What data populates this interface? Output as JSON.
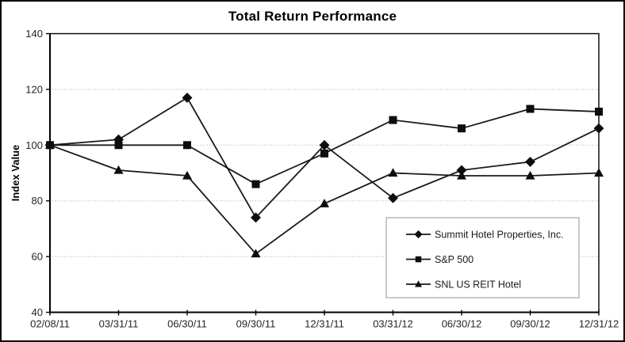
{
  "chart_data": {
    "type": "line",
    "title": "Total Return Performance",
    "xlabel": "",
    "ylabel": "Index Value",
    "ylim": [
      40,
      140
    ],
    "yticks": [
      40,
      60,
      80,
      100,
      120,
      140
    ],
    "grid_yticks": [
      60,
      80,
      100,
      120
    ],
    "grid": true,
    "legend_position": "inside-bottom-right",
    "categories": [
      "02/08/11",
      "03/31/11",
      "06/30/11",
      "09/30/11",
      "12/31/11",
      "03/31/12",
      "06/30/12",
      "09/30/12",
      "12/31/12"
    ],
    "series": [
      {
        "name": "Summit Hotel Properties, Inc.",
        "marker": "diamond",
        "values": [
          100,
          102,
          117,
          74,
          100,
          81,
          91,
          94,
          106
        ]
      },
      {
        "name": "S&P 500",
        "marker": "square",
        "values": [
          100,
          100,
          100,
          86,
          97,
          109,
          106,
          113,
          112
        ]
      },
      {
        "name": "SNL US REIT Hotel",
        "marker": "triangle",
        "values": [
          100,
          91,
          89,
          61,
          79,
          90,
          89,
          89,
          90
        ]
      }
    ],
    "colors": {
      "line": "#1a1a1a",
      "marker": "#0d0d0d",
      "grid": "#b3b3b3",
      "axis": "#000000",
      "tick_label": "#262626",
      "legend_border": "#a6a6a6",
      "background": "#ffffff"
    }
  }
}
